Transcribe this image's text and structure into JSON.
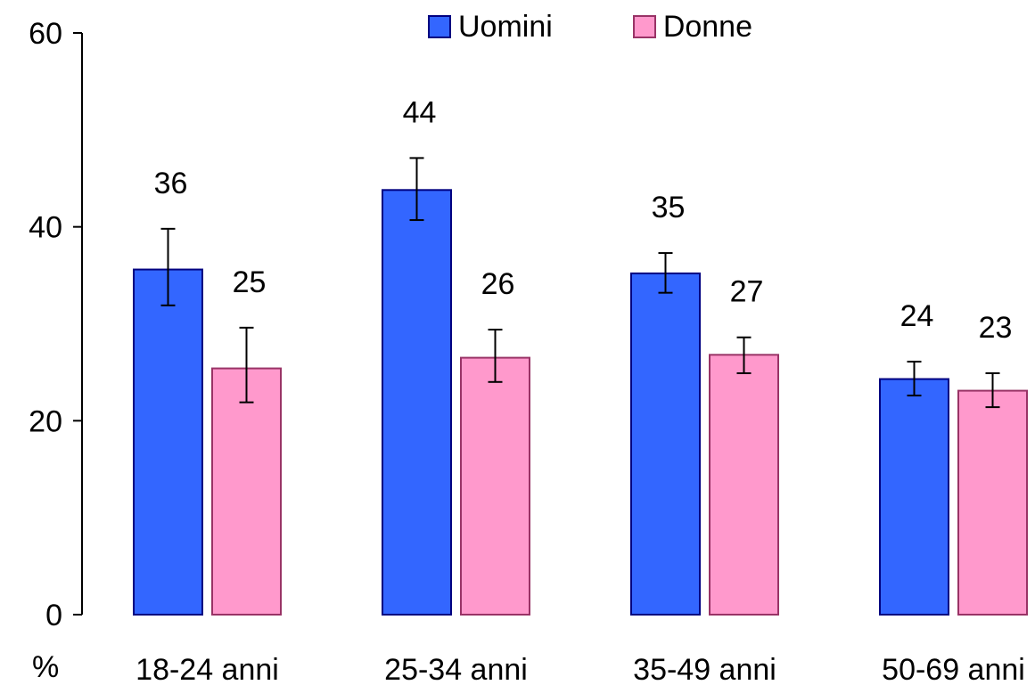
{
  "chart_data": {
    "type": "bar",
    "categories": [
      "18-24 anni",
      "25-34 anni",
      "35-49 anni",
      "50-69 anni"
    ],
    "series": [
      {
        "name": "Uomini",
        "color": "#3366ff",
        "border": "#000080",
        "values": [
          35.6,
          43.8,
          35.2,
          24.3
        ],
        "labels": [
          "36",
          "44",
          "35",
          "24"
        ],
        "error_low": [
          31.9,
          40.7,
          33.2,
          22.6
        ],
        "error_high": [
          39.8,
          47.1,
          37.3,
          26.1
        ]
      },
      {
        "name": "Donne",
        "color": "#ff99cc",
        "border": "#993366",
        "values": [
          25.4,
          26.5,
          26.8,
          23.1
        ],
        "labels": [
          "25",
          "26",
          "27",
          "23"
        ],
        "error_low": [
          21.9,
          24.0,
          24.9,
          21.4
        ],
        "error_high": [
          29.6,
          29.4,
          28.6,
          24.9
        ]
      }
    ],
    "yticks": [
      0,
      20,
      40,
      60
    ],
    "ylim": [
      0,
      60
    ],
    "ylabel": "%",
    "legend_position": "top",
    "grid": false
  }
}
